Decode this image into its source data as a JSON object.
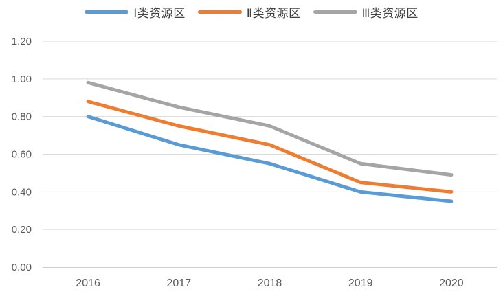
{
  "chart_data": {
    "type": "line",
    "title": "",
    "xlabel": "",
    "ylabel": "",
    "categories": [
      "2016",
      "2017",
      "2018",
      "2019",
      "2020"
    ],
    "series": [
      {
        "name": "Ⅰ类资源区",
        "color": "#5B9BD5",
        "values": [
          0.8,
          0.65,
          0.55,
          0.4,
          0.35
        ]
      },
      {
        "name": "Ⅱ类资源区",
        "color": "#ED7D31",
        "values": [
          0.88,
          0.75,
          0.65,
          0.45,
          0.4
        ]
      },
      {
        "name": "Ⅲ类资源区",
        "color": "#A5A5A5",
        "values": [
          0.98,
          0.85,
          0.75,
          0.55,
          0.49
        ]
      }
    ],
    "ylim": [
      0.0,
      1.2
    ],
    "ytick_step": 0.2,
    "ytick_labels_top_to_bottom": [
      "1.20",
      "1.00",
      "0.80",
      "0.60",
      "0.40",
      "0.20",
      "0.00"
    ],
    "grid": true,
    "legend_position": "top-center"
  },
  "palette": {
    "background": "#FFFFFF",
    "gridline": "#D9D9D9",
    "axis_line": "#BFBFBF",
    "tick_label_color": "#595959",
    "legend_label_color": "#404040"
  }
}
